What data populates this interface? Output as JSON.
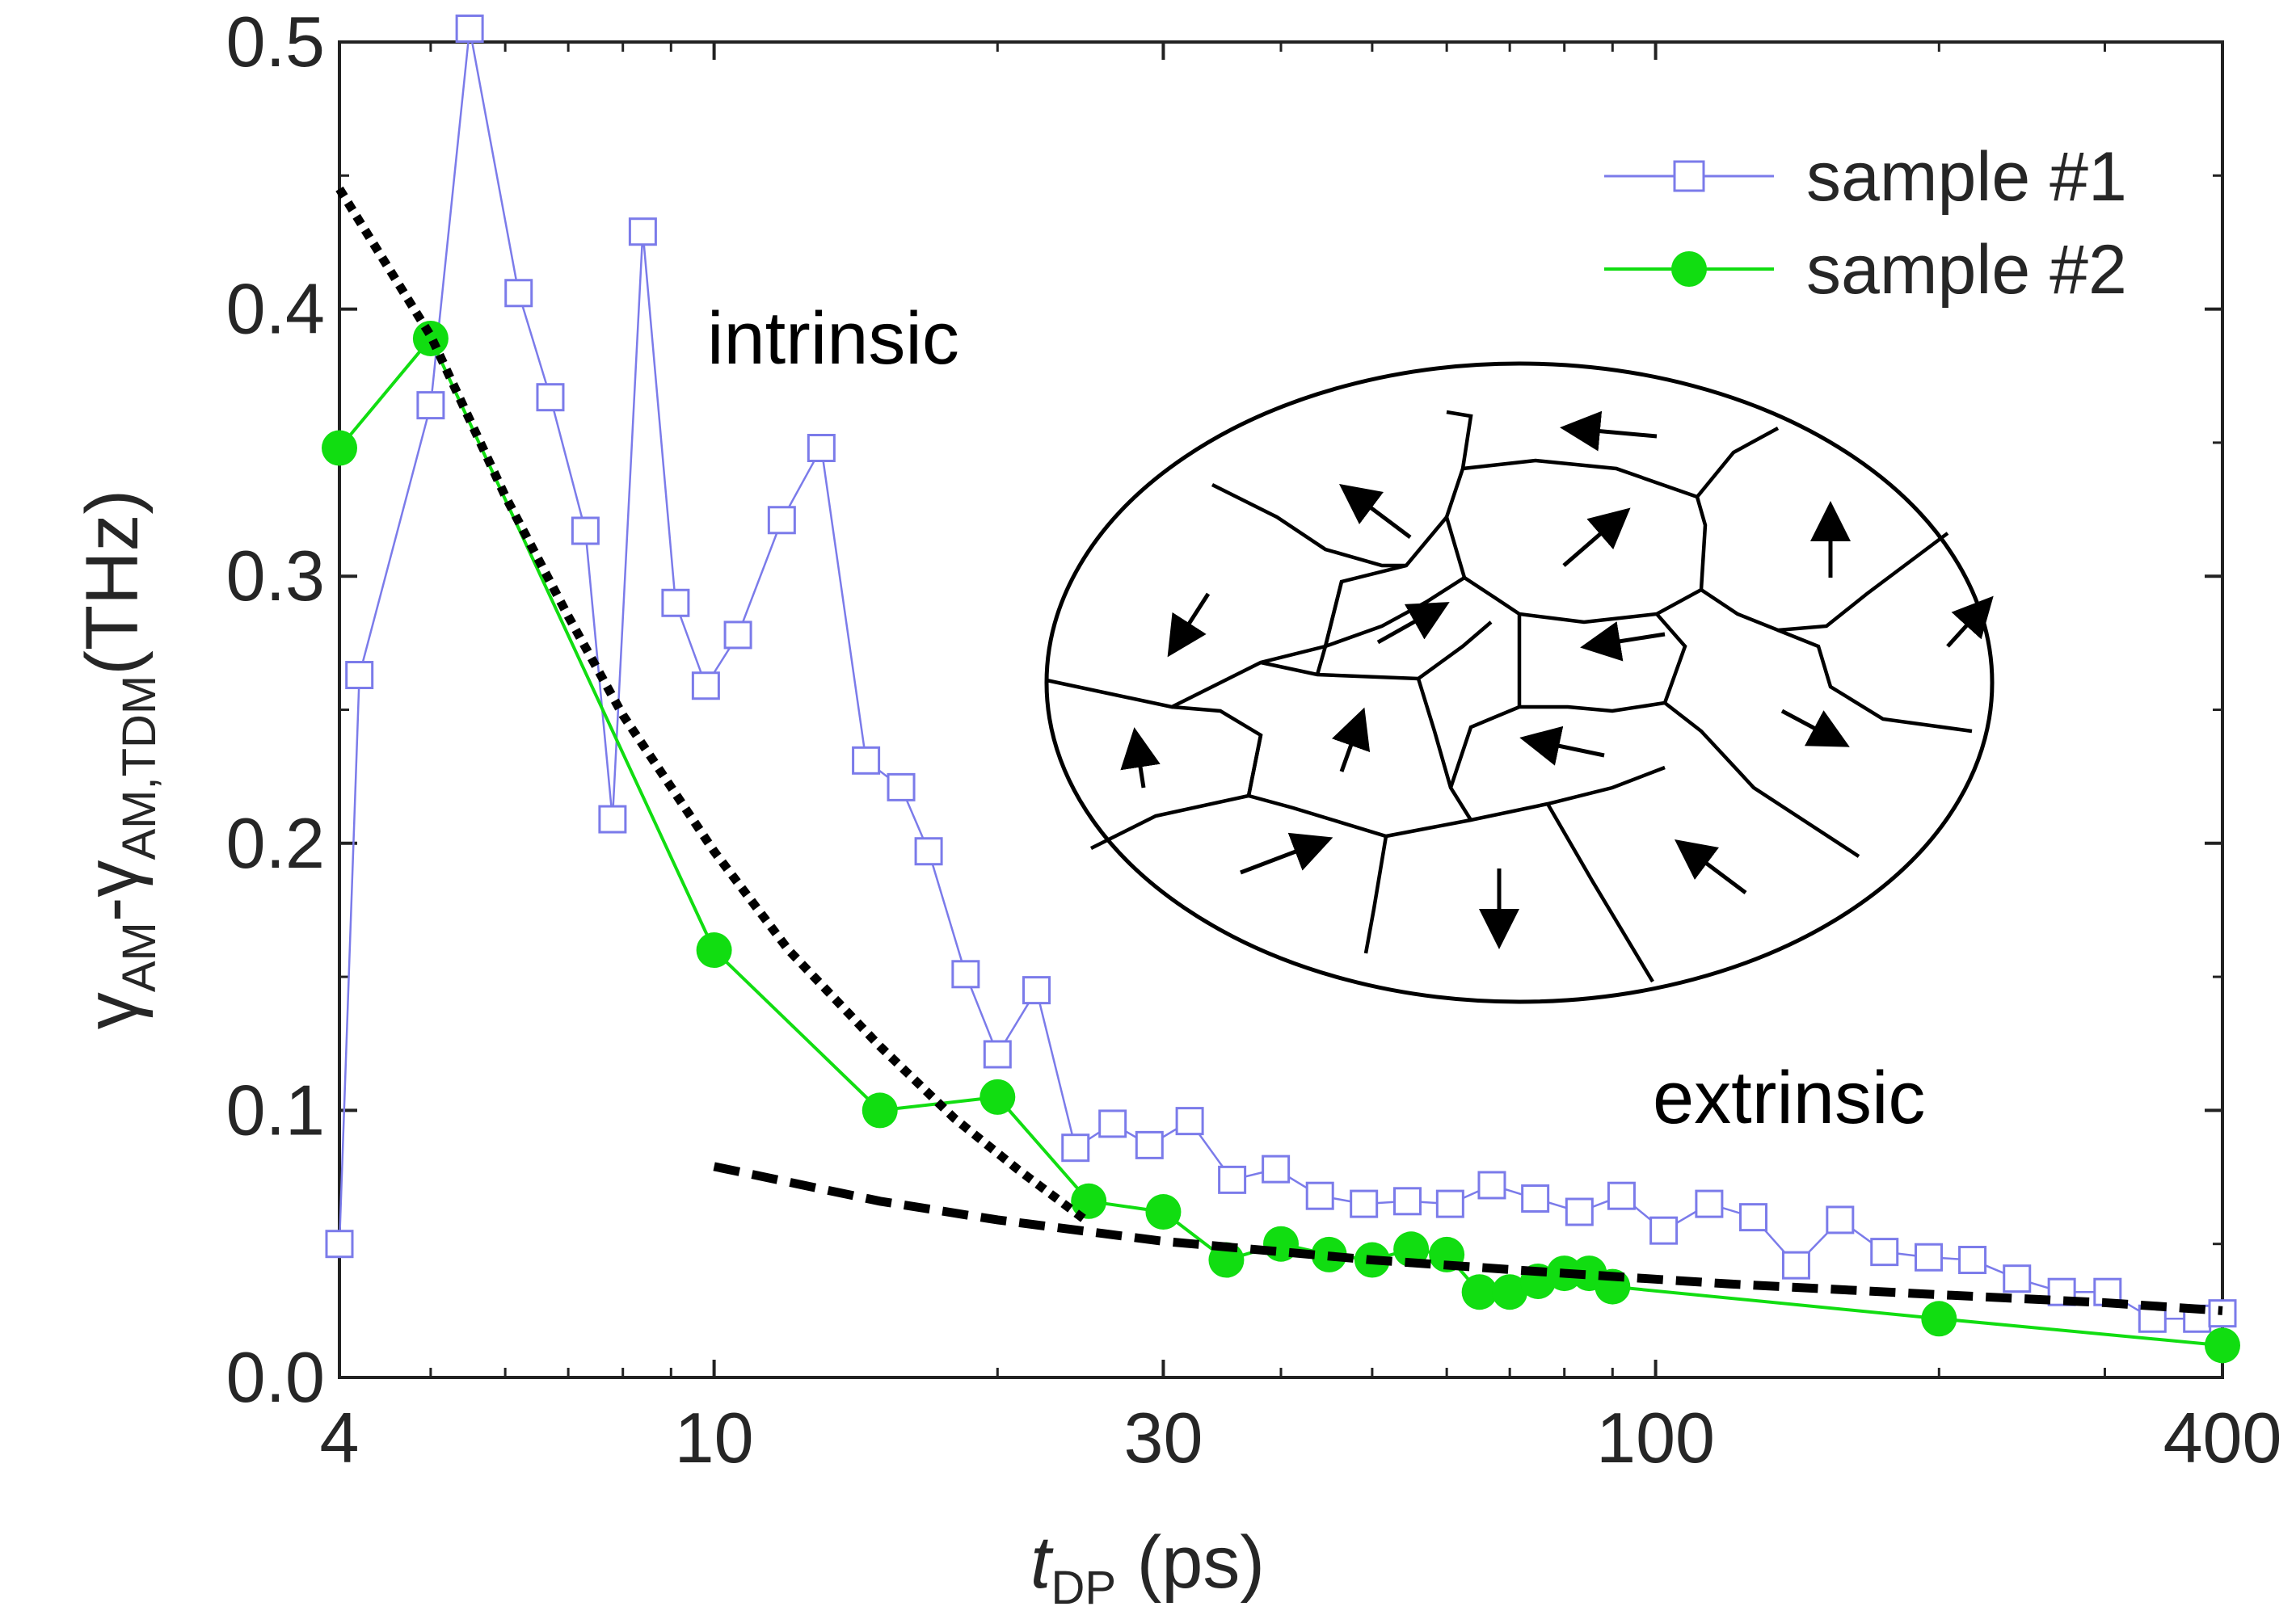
{
  "chart_data": {
    "type": "line",
    "title": "",
    "xlabel": {
      "italic": "t",
      "sub": "DP",
      "unit": " (ps)"
    },
    "ylabel": {
      "g1": "γ",
      "s1": "AM",
      "dash": "-",
      "g2": "γ",
      "s2": "AM,TDM",
      "unit": "(THz)"
    },
    "xscale": "log",
    "xlim": [
      4,
      400
    ],
    "ylim": [
      0,
      0.5
    ],
    "x_ticks": [
      4,
      10,
      30,
      100,
      400
    ],
    "x_tick_labels": [
      "4",
      "10",
      "30",
      "100",
      "400"
    ],
    "y_ticks": [
      0,
      0.1,
      0.2,
      0.3,
      0.4,
      0.5
    ],
    "y_tick_labels": [
      "0.0",
      "0.1",
      "0.2",
      "0.3",
      "0.4",
      "0.5"
    ],
    "legend_position": "top-right",
    "series": [
      {
        "name": "sample #1",
        "marker": "open-square",
        "color": "#7b7bea",
        "x": [
          4.0,
          4.2,
          5.0,
          5.5,
          6.2,
          6.7,
          7.3,
          7.8,
          8.4,
          9.1,
          9.8,
          10.6,
          11.8,
          13.0,
          14.5,
          15.8,
          16.9,
          18.5,
          20.0,
          22.0,
          24.2,
          26.5,
          29.0,
          32.0,
          35.5,
          39.5,
          44.0,
          49.0,
          54.5,
          60.5,
          67.0,
          74.5,
          83.0,
          92.0,
          102.0,
          114.0,
          127.0,
          141.0,
          157.0,
          175.0,
          195.0,
          217.0,
          242.0,
          270.0,
          302.0,
          337.0,
          376.0,
          400.0
        ],
        "values": [
          0.05,
          0.263,
          0.364,
          0.505,
          0.406,
          0.367,
          0.317,
          0.209,
          0.429,
          0.29,
          0.259,
          0.278,
          0.321,
          0.348,
          0.231,
          0.221,
          0.197,
          0.151,
          0.121,
          0.145,
          0.086,
          0.095,
          0.087,
          0.096,
          0.074,
          0.078,
          0.068,
          0.065,
          0.066,
          0.065,
          0.072,
          0.067,
          0.062,
          0.068,
          0.055,
          0.065,
          0.06,
          0.042,
          0.059,
          0.047,
          0.045,
          0.044,
          0.037,
          0.032,
          0.032,
          0.022,
          0.022,
          0.024
        ]
      },
      {
        "name": "sample #2",
        "marker": "filled-circle",
        "color": "#11dd11",
        "x": [
          4.0,
          5.0,
          10.0,
          15.0,
          20.0,
          25.0,
          30.0,
          35.0,
          40.0,
          45.0,
          50.0,
          55.0,
          60.0,
          65.0,
          70.0,
          75.0,
          80.0,
          85.0,
          90.0,
          200.0,
          400.0
        ],
        "values": [
          0.348,
          0.389,
          0.16,
          0.1,
          0.105,
          0.066,
          0.062,
          0.044,
          0.05,
          0.046,
          0.044,
          0.048,
          0.046,
          0.032,
          0.032,
          0.036,
          0.039,
          0.039,
          0.034,
          0.022,
          0.012
        ]
      }
    ],
    "fit_curves": [
      {
        "name": "intrinsic fit",
        "color": "#000000",
        "x": [
          4.0,
          5.0,
          6.0,
          7.0,
          8.0,
          10.0,
          12.0,
          15.0,
          18.0,
          21.0,
          25.0
        ],
        "values": [
          0.445,
          0.39,
          0.33,
          0.285,
          0.248,
          0.197,
          0.16,
          0.124,
          0.097,
          0.078,
          0.058
        ]
      },
      {
        "name": "extrinsic fit",
        "color": "#000000",
        "x": [
          10.0,
          15.0,
          20.0,
          30.0,
          50.0,
          80.0,
          120.0,
          200.0,
          300.0,
          400.0
        ],
        "values": [
          0.079,
          0.066,
          0.059,
          0.051,
          0.044,
          0.039,
          0.035,
          0.031,
          0.028,
          0.025
        ]
      }
    ],
    "annotations": [
      "intrinsic",
      "extrinsic"
    ]
  },
  "legend": {
    "items": [
      {
        "label": "sample #1",
        "marker": "open-square",
        "color": "#7b7bea"
      },
      {
        "label": "sample #2",
        "marker": "filled-circle",
        "color": "#11dd11"
      }
    ]
  },
  "labels": {
    "intrinsic": "intrinsic",
    "extrinsic": "extrinsic"
  },
  "inset": {
    "description_icon": "domain-grain-diagram-icon"
  }
}
